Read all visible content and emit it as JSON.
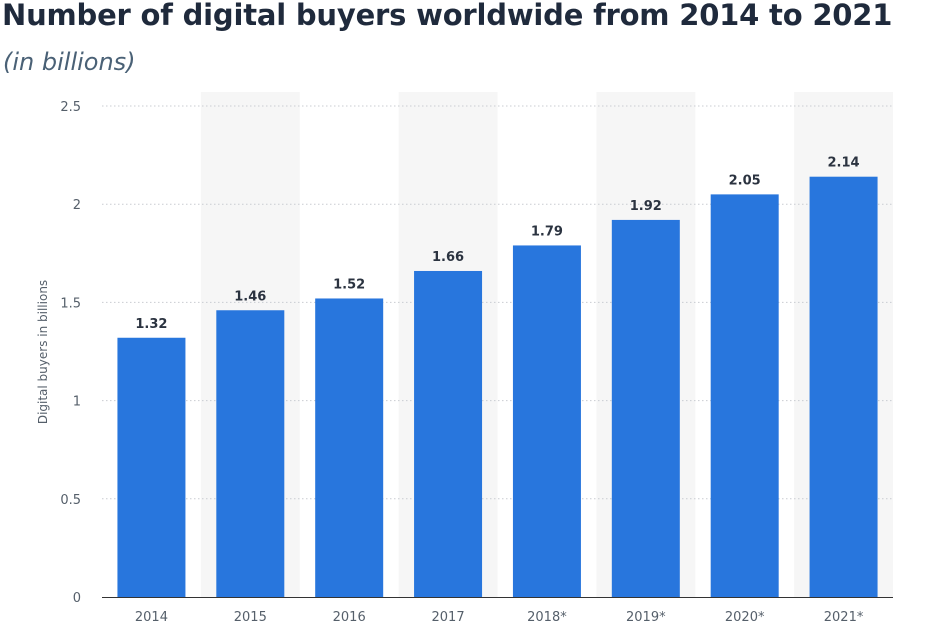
{
  "chart_data": {
    "type": "bar",
    "title": "Number of digital buyers worldwide from 2014 to 2021",
    "subtitle": "(in billions)",
    "xlabel": "",
    "ylabel": "Digital buyers in billions",
    "categories": [
      "2014",
      "2015",
      "2016",
      "2017",
      "2018*",
      "2019*",
      "2020*",
      "2021*"
    ],
    "values": [
      1.32,
      1.46,
      1.52,
      1.66,
      1.79,
      1.92,
      2.05,
      2.14
    ],
    "value_labels": [
      "1.32",
      "1.46",
      "1.52",
      "1.66",
      "1.79",
      "1.92",
      "2.05",
      "2.14"
    ],
    "yticks": [
      0,
      0.5,
      1,
      1.5,
      2,
      2.5
    ],
    "ytick_labels": [
      "0",
      "0.5",
      "1",
      "1.5",
      "2",
      "2.5"
    ],
    "ylim": [
      0,
      2.5
    ],
    "grid": true,
    "grid_style": "dotted",
    "legend": "none",
    "colors": {
      "bar": "#2876dd",
      "band": "#f6f6f6",
      "grid": "#c9ccd1",
      "axis": "#333333",
      "title": "#1f2a3c",
      "subtitle": "#4a6176"
    }
  }
}
